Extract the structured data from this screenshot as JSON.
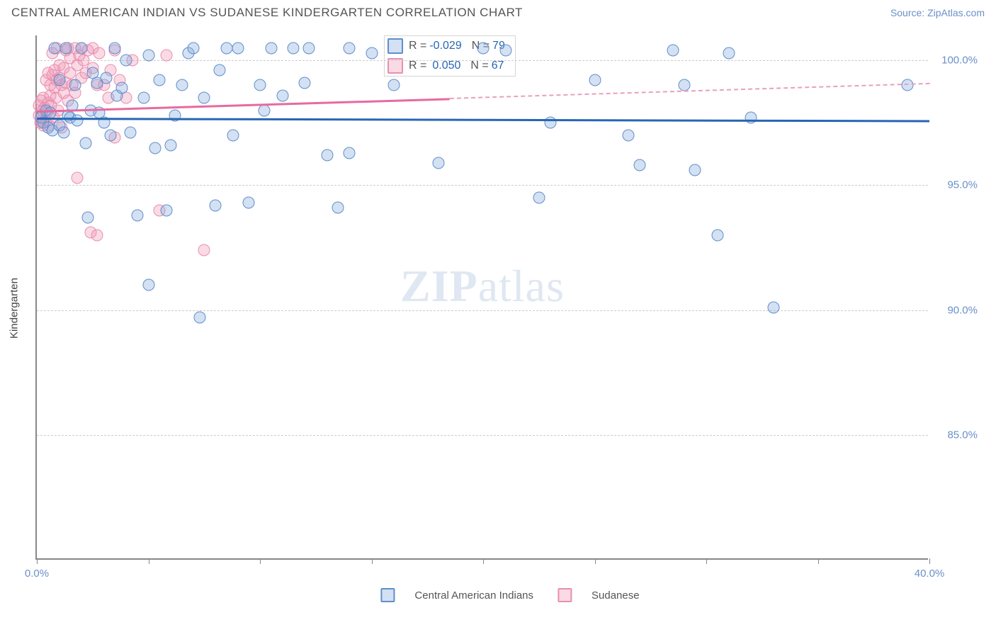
{
  "header": {
    "title": "CENTRAL AMERICAN INDIAN VS SUDANESE KINDERGARTEN CORRELATION CHART",
    "source": "Source: ZipAtlas.com"
  },
  "chart": {
    "type": "scatter",
    "ylabel": "Kindergarten",
    "watermark_zip": "ZIP",
    "watermark_atlas": "atlas",
    "xlim": [
      0,
      40
    ],
    "ylim": [
      80,
      101
    ],
    "y_ticks": [
      85.0,
      90.0,
      95.0,
      100.0
    ],
    "y_tick_labels": [
      "85.0%",
      "90.0%",
      "95.0%",
      "100.0%"
    ],
    "x_tick_marks": [
      0,
      5,
      10,
      15,
      20,
      25,
      30,
      35,
      40
    ],
    "x_tick_labels": [
      {
        "x": 0,
        "label": "0.0%"
      },
      {
        "x": 40,
        "label": "40.0%"
      }
    ],
    "background_color": "#ffffff",
    "grid_color": "#cccccc",
    "axis_color": "#888888",
    "marker_radius": 8.5,
    "series": {
      "A": {
        "label": "Central American Indians",
        "color_fill": "rgba(130,170,220,0.35)",
        "color_stroke": "#5f8ecb",
        "R": "-0.029",
        "N": "79",
        "trend": {
          "x1": 0,
          "y1": 97.7,
          "x2": 40,
          "y2": 97.6,
          "color": "#2766b3",
          "width": 2.5
        },
        "points": [
          [
            0.2,
            97.7
          ],
          [
            0.3,
            97.5
          ],
          [
            0.4,
            98.0
          ],
          [
            0.5,
            97.3
          ],
          [
            0.6,
            97.9
          ],
          [
            0.7,
            97.2
          ],
          [
            0.8,
            100.5
          ],
          [
            1.0,
            97.4
          ],
          [
            1.0,
            99.2
          ],
          [
            1.2,
            97.1
          ],
          [
            1.3,
            100.5
          ],
          [
            1.4,
            97.8
          ],
          [
            1.5,
            97.7
          ],
          [
            1.6,
            98.2
          ],
          [
            1.7,
            99.0
          ],
          [
            1.8,
            97.6
          ],
          [
            2.0,
            100.5
          ],
          [
            2.2,
            96.7
          ],
          [
            2.3,
            93.7
          ],
          [
            2.4,
            98.0
          ],
          [
            2.5,
            99.5
          ],
          [
            2.7,
            99.1
          ],
          [
            2.8,
            97.9
          ],
          [
            3.0,
            97.5
          ],
          [
            3.1,
            99.3
          ],
          [
            3.3,
            97.0
          ],
          [
            3.5,
            100.5
          ],
          [
            3.6,
            98.6
          ],
          [
            3.8,
            98.9
          ],
          [
            4.0,
            100.0
          ],
          [
            4.2,
            97.1
          ],
          [
            4.5,
            93.8
          ],
          [
            4.8,
            98.5
          ],
          [
            5.0,
            100.2
          ],
          [
            5.0,
            91.0
          ],
          [
            5.3,
            96.5
          ],
          [
            5.5,
            99.2
          ],
          [
            5.8,
            94.0
          ],
          [
            6.0,
            96.6
          ],
          [
            6.2,
            97.8
          ],
          [
            6.5,
            99.0
          ],
          [
            6.8,
            100.3
          ],
          [
            7.0,
            100.5
          ],
          [
            7.3,
            89.7
          ],
          [
            7.5,
            98.5
          ],
          [
            8.0,
            94.2
          ],
          [
            8.2,
            99.6
          ],
          [
            8.5,
            100.5
          ],
          [
            8.8,
            97.0
          ],
          [
            9.0,
            100.5
          ],
          [
            9.5,
            94.3
          ],
          [
            10.0,
            99.0
          ],
          [
            10.2,
            98.0
          ],
          [
            10.5,
            100.5
          ],
          [
            11.0,
            98.6
          ],
          [
            11.5,
            100.5
          ],
          [
            12.0,
            99.1
          ],
          [
            12.2,
            100.5
          ],
          [
            13.0,
            96.2
          ],
          [
            13.5,
            94.1
          ],
          [
            14.0,
            100.5
          ],
          [
            14.0,
            96.3
          ],
          [
            15.0,
            100.3
          ],
          [
            16.0,
            99.0
          ],
          [
            18.0,
            95.9
          ],
          [
            20.0,
            100.5
          ],
          [
            21.0,
            100.4
          ],
          [
            22.5,
            94.5
          ],
          [
            23.0,
            97.5
          ],
          [
            25.0,
            99.2
          ],
          [
            26.5,
            97.0
          ],
          [
            27.0,
            95.8
          ],
          [
            28.5,
            100.4
          ],
          [
            29.0,
            99.0
          ],
          [
            29.5,
            95.6
          ],
          [
            30.5,
            93.0
          ],
          [
            31.0,
            100.3
          ],
          [
            32.0,
            97.7
          ],
          [
            33.0,
            90.1
          ],
          [
            39.0,
            99.0
          ]
        ]
      },
      "B": {
        "label": "Sudanese",
        "color_fill": "rgba(240,150,180,0.35)",
        "color_stroke": "#e78fb0",
        "R": "0.050",
        "N": "67",
        "trend": {
          "x1": 0,
          "y1": 98.0,
          "x2": 18.5,
          "y2": 98.5,
          "color": "#e76aa0",
          "width": 2.5
        },
        "trend_dashed": {
          "x1": 18.5,
          "y1": 98.5,
          "x2": 40,
          "y2": 99.1,
          "color": "#e7a0c0"
        },
        "points": [
          [
            0.1,
            97.8
          ],
          [
            0.1,
            98.2
          ],
          [
            0.15,
            97.5
          ],
          [
            0.2,
            97.6
          ],
          [
            0.2,
            98.4
          ],
          [
            0.25,
            98.0
          ],
          [
            0.3,
            97.4
          ],
          [
            0.3,
            98.5
          ],
          [
            0.35,
            98.1
          ],
          [
            0.4,
            97.6
          ],
          [
            0.4,
            99.2
          ],
          [
            0.45,
            97.9
          ],
          [
            0.5,
            98.3
          ],
          [
            0.5,
            99.5
          ],
          [
            0.55,
            97.4
          ],
          [
            0.6,
            98.6
          ],
          [
            0.6,
            99.0
          ],
          [
            0.65,
            98.2
          ],
          [
            0.7,
            99.4
          ],
          [
            0.7,
            100.3
          ],
          [
            0.75,
            97.7
          ],
          [
            0.8,
            98.9
          ],
          [
            0.8,
            99.6
          ],
          [
            0.85,
            98.5
          ],
          [
            0.9,
            99.2
          ],
          [
            0.9,
            100.5
          ],
          [
            0.95,
            98.0
          ],
          [
            1.0,
            99.3
          ],
          [
            1.0,
            99.8
          ],
          [
            1.1,
            97.3
          ],
          [
            1.1,
            99.0
          ],
          [
            1.2,
            98.7
          ],
          [
            1.2,
            99.7
          ],
          [
            1.3,
            100.4
          ],
          [
            1.3,
            99.1
          ],
          [
            1.4,
            100.5
          ],
          [
            1.4,
            98.4
          ],
          [
            1.5,
            99.5
          ],
          [
            1.5,
            100.1
          ],
          [
            1.6,
            99.0
          ],
          [
            1.7,
            100.5
          ],
          [
            1.7,
            98.7
          ],
          [
            1.8,
            99.8
          ],
          [
            1.8,
            95.3
          ],
          [
            1.9,
            100.2
          ],
          [
            2.0,
            99.3
          ],
          [
            2.0,
            100.5
          ],
          [
            2.1,
            100.0
          ],
          [
            2.2,
            99.5
          ],
          [
            2.3,
            100.4
          ],
          [
            2.4,
            93.1
          ],
          [
            2.5,
            99.7
          ],
          [
            2.5,
            100.5
          ],
          [
            2.7,
            99.0
          ],
          [
            2.7,
            93.0
          ],
          [
            2.8,
            100.3
          ],
          [
            3.0,
            99.0
          ],
          [
            3.2,
            98.5
          ],
          [
            3.3,
            99.6
          ],
          [
            3.5,
            96.9
          ],
          [
            3.5,
            100.4
          ],
          [
            3.7,
            99.2
          ],
          [
            4.0,
            98.5
          ],
          [
            4.3,
            100.0
          ],
          [
            5.5,
            94.0
          ],
          [
            5.8,
            100.2
          ],
          [
            7.5,
            92.4
          ]
        ]
      }
    },
    "stats_box": {
      "R_label": "R =",
      "N_label": "N ="
    },
    "legend": {
      "items": [
        "Central American Indians",
        "Sudanese"
      ]
    }
  }
}
